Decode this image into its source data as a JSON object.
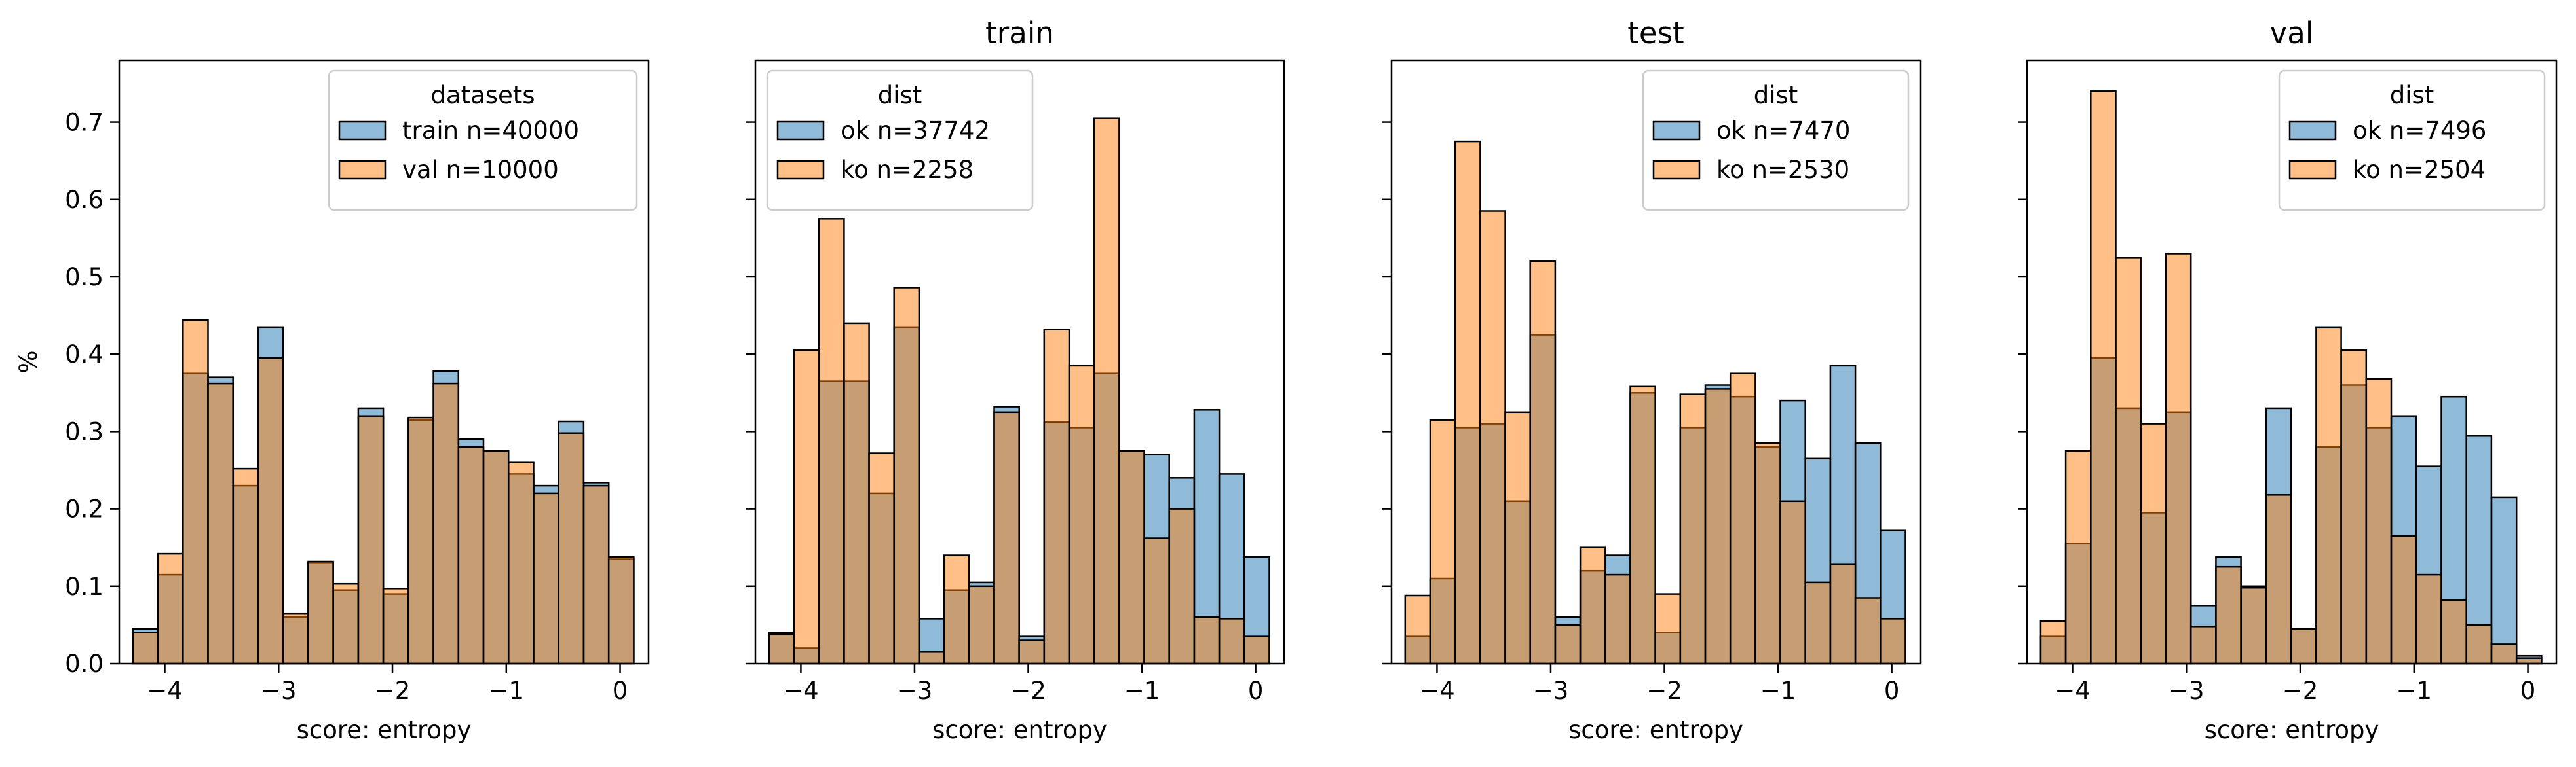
{
  "colors": {
    "ok": "#1f77b4",
    "ko": "#ff7f0e"
  },
  "chart_data": [
    {
      "type": "histogram",
      "title": "",
      "xlabel": "score: entropy",
      "ylabel": "%",
      "xlim": [
        -4.4,
        0.25
      ],
      "ylim": [
        0,
        0.78
      ],
      "xticks": [
        -4,
        -3,
        -2,
        -1,
        0
      ],
      "xtick_labels": [
        "−4",
        "−3",
        "−2",
        "−1",
        "0"
      ],
      "yticks": [
        0,
        0.1,
        0.2,
        0.3,
        0.4,
        0.5,
        0.6,
        0.7
      ],
      "ytick_labels": [
        "0.0",
        "0.1",
        "0.2",
        "0.3",
        "0.4",
        "0.5",
        "0.6",
        "0.7"
      ],
      "bin_edges": [
        -4.28,
        -4.06,
        -3.84,
        -3.62,
        -3.4,
        -3.18,
        -2.96,
        -2.74,
        -2.52,
        -2.3,
        -2.08,
        -1.86,
        -1.64,
        -1.42,
        -1.2,
        -0.98,
        -0.76,
        -0.54,
        -0.32,
        -0.1
      ],
      "legend": {
        "title": "datasets",
        "position": "upper right"
      },
      "series": [
        {
          "name": "train n=40000",
          "color_key": "ok",
          "values": [
            0.045,
            0.115,
            0.375,
            0.37,
            0.23,
            0.435,
            0.06,
            0.13,
            0.095,
            0.33,
            0.09,
            0.315,
            0.378,
            0.29,
            0.275,
            0.245,
            0.23,
            0.313,
            0.234,
            0.135
          ]
        },
        {
          "name": "val n=10000",
          "color_key": "ko",
          "values": [
            0.04,
            0.142,
            0.444,
            0.362,
            0.252,
            0.395,
            0.065,
            0.132,
            0.103,
            0.32,
            0.097,
            0.318,
            0.362,
            0.28,
            0.275,
            0.26,
            0.22,
            0.298,
            0.23,
            0.138
          ]
        }
      ]
    },
    {
      "type": "histogram",
      "title": "train",
      "xlabel": "score: entropy",
      "ylabel": "",
      "xlim": [
        -4.4,
        0.25
      ],
      "ylim": [
        0,
        0.78
      ],
      "xticks": [
        -4,
        -3,
        -2,
        -1,
        0
      ],
      "xtick_labels": [
        "−4",
        "−3",
        "−2",
        "−1",
        "0"
      ],
      "yticks": [
        0,
        0.1,
        0.2,
        0.3,
        0.4,
        0.5,
        0.6,
        0.7
      ],
      "ytick_labels": [],
      "bin_edges": [
        -4.28,
        -4.06,
        -3.84,
        -3.62,
        -3.4,
        -3.18,
        -2.96,
        -2.74,
        -2.52,
        -2.3,
        -2.08,
        -1.86,
        -1.64,
        -1.42,
        -1.2,
        -0.98,
        -0.76,
        -0.54,
        -0.32,
        -0.1
      ],
      "legend": {
        "title": "dist",
        "position": "upper left"
      },
      "series": [
        {
          "name": "ok n=37742",
          "color_key": "ok",
          "values": [
            0.04,
            0.02,
            0.365,
            0.365,
            0.22,
            0.435,
            0.058,
            0.095,
            0.105,
            0.332,
            0.035,
            0.312,
            0.305,
            0.375,
            0.275,
            0.27,
            0.24,
            0.328,
            0.245,
            0.138
          ]
        },
        {
          "name": "ko n=2258",
          "color_key": "ko",
          "values": [
            0.038,
            0.405,
            0.575,
            0.44,
            0.272,
            0.486,
            0.015,
            0.14,
            0.1,
            0.325,
            0.03,
            0.432,
            0.385,
            0.705,
            0.275,
            0.162,
            0.2,
            0.06,
            0.058,
            0.035
          ]
        }
      ]
    },
    {
      "type": "histogram",
      "title": "test",
      "xlabel": "score: entropy",
      "ylabel": "",
      "xlim": [
        -4.4,
        0.25
      ],
      "ylim": [
        0,
        0.78
      ],
      "xticks": [
        -4,
        -3,
        -2,
        -1,
        0
      ],
      "xtick_labels": [
        "−4",
        "−3",
        "−2",
        "−1",
        "0"
      ],
      "yticks": [
        0,
        0.1,
        0.2,
        0.3,
        0.4,
        0.5,
        0.6,
        0.7
      ],
      "ytick_labels": [],
      "bin_edges": [
        -4.28,
        -4.06,
        -3.84,
        -3.62,
        -3.4,
        -3.18,
        -2.96,
        -2.74,
        -2.52,
        -2.3,
        -2.08,
        -1.86,
        -1.64,
        -1.42,
        -1.2,
        -0.98,
        -0.76,
        -0.54,
        -0.32,
        -0.1
      ],
      "legend": {
        "title": "dist",
        "position": "upper right"
      },
      "series": [
        {
          "name": "ok n=7470",
          "color_key": "ok",
          "values": [
            0.035,
            0.11,
            0.305,
            0.31,
            0.21,
            0.425,
            0.06,
            0.12,
            0.14,
            0.35,
            0.04,
            0.305,
            0.36,
            0.345,
            0.28,
            0.34,
            0.265,
            0.385,
            0.285,
            0.172
          ]
        },
        {
          "name": "ko n=2530",
          "color_key": "ko",
          "values": [
            0.088,
            0.315,
            0.675,
            0.585,
            0.325,
            0.52,
            0.05,
            0.15,
            0.115,
            0.358,
            0.09,
            0.348,
            0.355,
            0.375,
            0.285,
            0.21,
            0.105,
            0.128,
            0.085,
            0.058
          ]
        }
      ]
    },
    {
      "type": "histogram",
      "title": "val",
      "xlabel": "score: entropy",
      "ylabel": "",
      "xlim": [
        -4.4,
        0.25
      ],
      "ylim": [
        0,
        0.78
      ],
      "xticks": [
        -4,
        -3,
        -2,
        -1,
        0
      ],
      "xtick_labels": [
        "−4",
        "−3",
        "−2",
        "−1",
        "0"
      ],
      "yticks": [
        0,
        0.1,
        0.2,
        0.3,
        0.4,
        0.5,
        0.6,
        0.7
      ],
      "ytick_labels": [],
      "bin_edges": [
        -4.28,
        -4.06,
        -3.84,
        -3.62,
        -3.4,
        -3.18,
        -2.96,
        -2.74,
        -2.52,
        -2.3,
        -2.08,
        -1.86,
        -1.64,
        -1.42,
        -1.2,
        -0.98,
        -0.76,
        -0.54,
        -0.32,
        -0.1
      ],
      "legend": {
        "title": "dist",
        "position": "upper right"
      },
      "series": [
        {
          "name": "ok n=7496",
          "color_key": "ok",
          "values": [
            0.035,
            0.155,
            0.395,
            0.33,
            0.195,
            0.325,
            0.075,
            0.138,
            0.1,
            0.33,
            0.045,
            0.28,
            0.36,
            0.305,
            0.32,
            0.255,
            0.345,
            0.295,
            0.215,
            0.01
          ]
        },
        {
          "name": "ko n=2504",
          "color_key": "ko",
          "values": [
            0.055,
            0.275,
            0.74,
            0.525,
            0.31,
            0.53,
            0.048,
            0.125,
            0.098,
            0.218,
            0.045,
            0.435,
            0.405,
            0.368,
            0.165,
            0.115,
            0.082,
            0.05,
            0.025,
            0.007
          ]
        }
      ]
    }
  ]
}
